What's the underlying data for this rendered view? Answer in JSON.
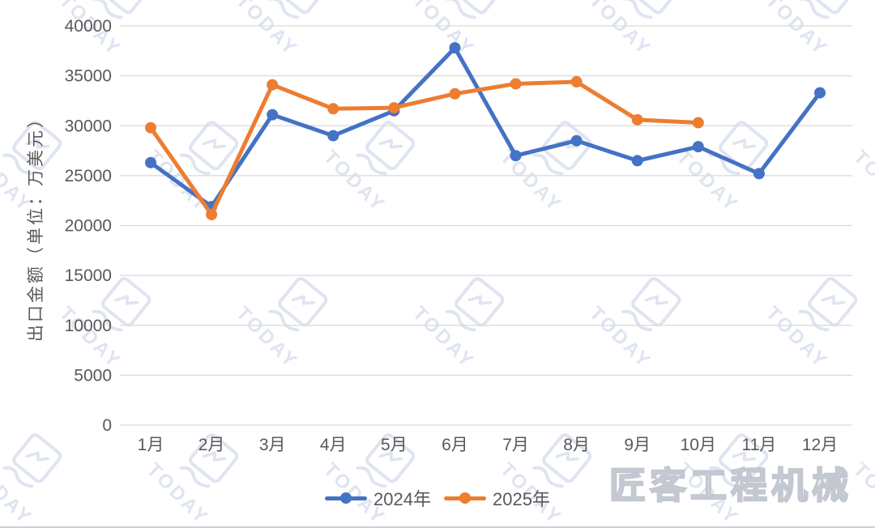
{
  "chart_data": {
    "type": "line",
    "title": "",
    "xlabel": "",
    "ylabel": "出口金额（单位：万美元）",
    "categories": [
      "1月",
      "2月",
      "3月",
      "4月",
      "5月",
      "6月",
      "7月",
      "8月",
      "9月",
      "10月",
      "11月",
      "12月"
    ],
    "series": [
      {
        "name": "2024年",
        "color": "#4472C4",
        "values": [
          26300,
          21900,
          31100,
          29000,
          31500,
          37800,
          27000,
          28500,
          26500,
          27900,
          25200,
          33300
        ]
      },
      {
        "name": "2025年",
        "color": "#ED7D31",
        "values": [
          29800,
          21100,
          34100,
          31700,
          31800,
          33200,
          34200,
          34400,
          30600,
          30300
        ]
      }
    ],
    "ylim": [
      0,
      40000
    ],
    "ytick_step": 5000,
    "grid": true,
    "legend_position": "bottom"
  },
  "colors": {
    "grid": "#d9d9d9",
    "axis_text": "#595959",
    "background": "#ffffff"
  },
  "watermark": {
    "brand_text": "TODAY",
    "corner_text": "匠客工程机械"
  }
}
